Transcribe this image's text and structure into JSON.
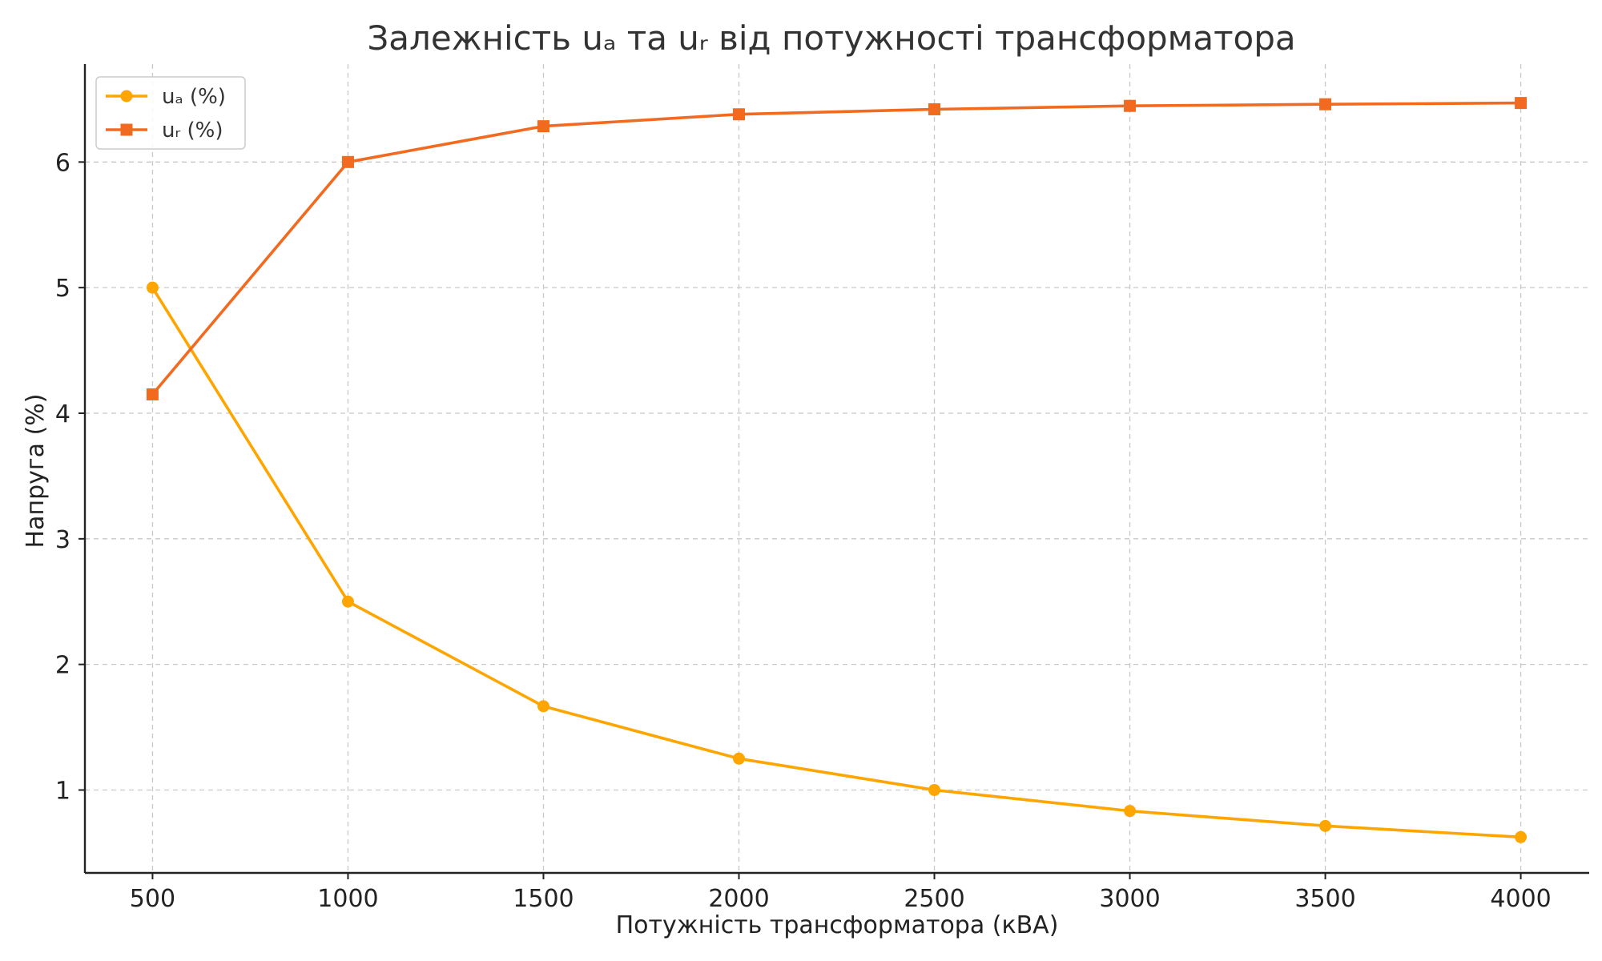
{
  "chart_data": {
    "type": "line",
    "title": "Залежність uₐ та uᵣ від потужності трансформатора",
    "xlabel": "Потужність трансформатора (кВА)",
    "ylabel": "Напруга (%)",
    "x": [
      500,
      1000,
      1500,
      2000,
      2500,
      3000,
      3500,
      4000
    ],
    "x_ticks": [
      "500",
      "1000",
      "1500",
      "2000",
      "2500",
      "3000",
      "3500",
      "4000"
    ],
    "y_ticks": [
      "1",
      "2",
      "3",
      "4",
      "5",
      "6"
    ],
    "xlim": [
      327,
      4175
    ],
    "ylim": [
      0.34,
      6.78
    ],
    "grid": true,
    "legend_position": "top-left",
    "series": [
      {
        "name": "uₐ (%)",
        "marker": "circle",
        "color": "#FFA500",
        "values": [
          5.0,
          2.5,
          1.667,
          1.25,
          1.0,
          0.833,
          0.714,
          0.625
        ]
      },
      {
        "name": "uᵣ (%)",
        "marker": "square",
        "color": "#F26A1F",
        "values": [
          4.15,
          6.0,
          6.285,
          6.38,
          6.42,
          6.447,
          6.46,
          6.47
        ]
      }
    ]
  }
}
